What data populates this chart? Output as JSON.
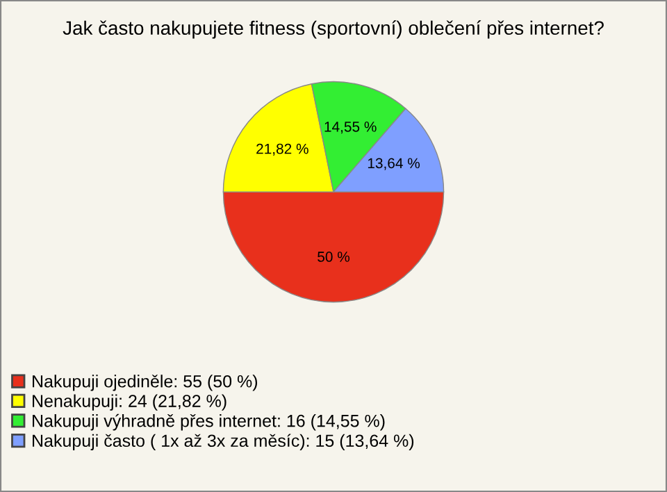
{
  "chart_data": {
    "type": "pie",
    "title": "Jak často nakupujete fitness (sportovní) oblečení přes internet?",
    "categories": [
      "Nakupuji ojediněle: 55 (50 %)",
      "Nenakupuji: 24 (21,82 %)",
      "Nakupuji výhradně přes internet: 16 (14,55 %)",
      "Nakupuji často ( 1x až 3x za měsíc): 15 (13,64 %)"
    ],
    "values": [
      50,
      21.82,
      14.55,
      13.64
    ],
    "value_labels": [
      "50 %",
      "21,82 %",
      "14,55 %",
      "13,64 %"
    ],
    "colors": [
      "#e8301c",
      "#ffff00",
      "#33ee33",
      "#7f9fff"
    ],
    "legend": "bottom left"
  }
}
